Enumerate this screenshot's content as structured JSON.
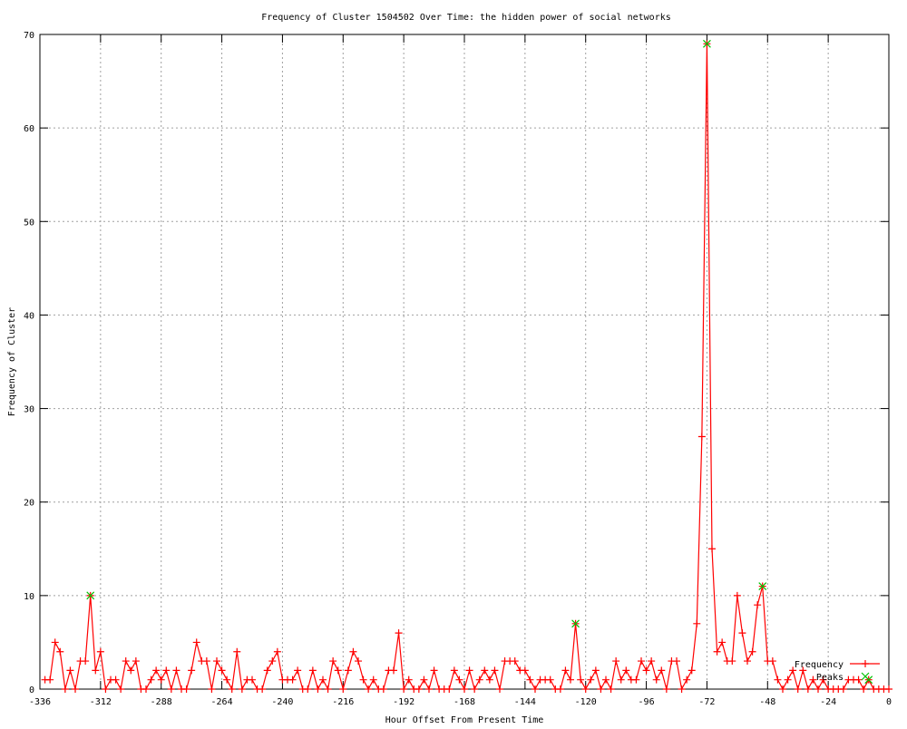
{
  "chart_data": {
    "type": "line",
    "title": "Frequency of Cluster 1504502 Over Time: the hidden power of social networks",
    "xlabel": "Hour Offset From Present Time",
    "ylabel": "Frequency of Cluster",
    "xlim": [
      -336,
      0
    ],
    "ylim": [
      0,
      70
    ],
    "xticks": [
      -336,
      -312,
      -288,
      -264,
      -240,
      -216,
      -192,
      -168,
      -144,
      -120,
      -96,
      -72,
      -48,
      -24,
      0
    ],
    "yticks": [
      0,
      10,
      20,
      30,
      40,
      50,
      60,
      70
    ],
    "grid": true,
    "legend_position": "bottom-right",
    "series": [
      {
        "name": "Frequency",
        "color": "#ff0000",
        "marker": "plus",
        "x_start": -334,
        "x_step": 2,
        "values": [
          1,
          1,
          5,
          4,
          0,
          2,
          0,
          3,
          3,
          10,
          2,
          4,
          0,
          1,
          1,
          0,
          3,
          2,
          3,
          0,
          0,
          1,
          2,
          1,
          2,
          0,
          2,
          0,
          0,
          2,
          5,
          3,
          3,
          0,
          3,
          2,
          1,
          0,
          4,
          0,
          1,
          1,
          0,
          0,
          2,
          3,
          4,
          1,
          1,
          1,
          2,
          0,
          0,
          2,
          0,
          1,
          0,
          3,
          2,
          0,
          2,
          4,
          3,
          1,
          0,
          1,
          0,
          0,
          2,
          2,
          6,
          0,
          1,
          0,
          0,
          1,
          0,
          2,
          0,
          0,
          0,
          2,
          1,
          0,
          2,
          0,
          1,
          2,
          1,
          2,
          0,
          3,
          3,
          3,
          2,
          2,
          1,
          0,
          1,
          1,
          1,
          0,
          0,
          2,
          1,
          7,
          1,
          0,
          1,
          2,
          0,
          1,
          0,
          3,
          1,
          2,
          1,
          1,
          3,
          2,
          3,
          1,
          2,
          0,
          3,
          3,
          0,
          1,
          2,
          7,
          27,
          69,
          15,
          4,
          5,
          3,
          3,
          10,
          6,
          3,
          4,
          9,
          11,
          3,
          3,
          1,
          0,
          1,
          2,
          0,
          2,
          0,
          1,
          0,
          1,
          0,
          0,
          0,
          0,
          1,
          1,
          1,
          0,
          1,
          0,
          0,
          0,
          0
        ]
      },
      {
        "name": "Peaks",
        "color": "#00c000",
        "marker": "cross",
        "points": [
          [
            -316,
            10
          ],
          [
            -124,
            7
          ],
          [
            -72,
            69
          ],
          [
            -50,
            11
          ],
          [
            -8,
            1
          ]
        ]
      }
    ]
  }
}
